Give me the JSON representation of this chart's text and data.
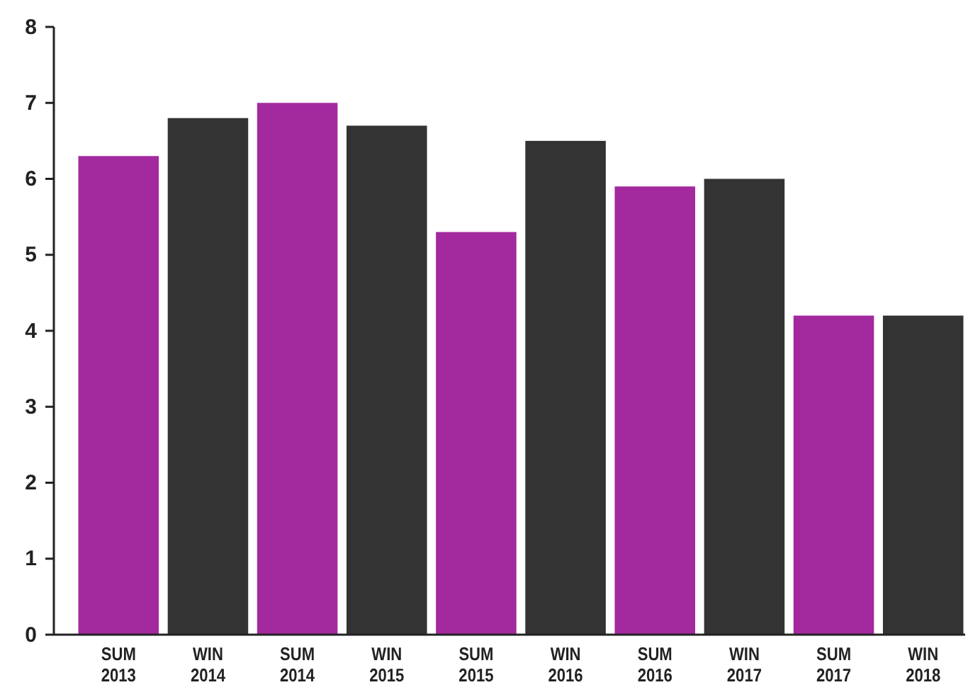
{
  "chart_data": {
    "type": "bar",
    "categories": [
      "SUM 2013",
      "WIN 2014",
      "SUM 2014",
      "WIN 2015",
      "SUM 2015",
      "WIN 2016",
      "SUM 2016",
      "WIN 2017",
      "SUM 2017",
      "WIN 2018"
    ],
    "values": [
      6.3,
      6.8,
      7.0,
      6.7,
      5.3,
      6.5,
      5.9,
      6.0,
      4.2,
      4.2
    ],
    "colors": [
      "#a3299e",
      "#333333",
      "#a3299e",
      "#333333",
      "#a3299e",
      "#333333",
      "#a3299e",
      "#333333",
      "#a3299e",
      "#333333"
    ],
    "ylim": [
      0,
      8
    ],
    "yticks": [
      0,
      1,
      2,
      3,
      4,
      5,
      6,
      7,
      8
    ],
    "grid": false
  }
}
